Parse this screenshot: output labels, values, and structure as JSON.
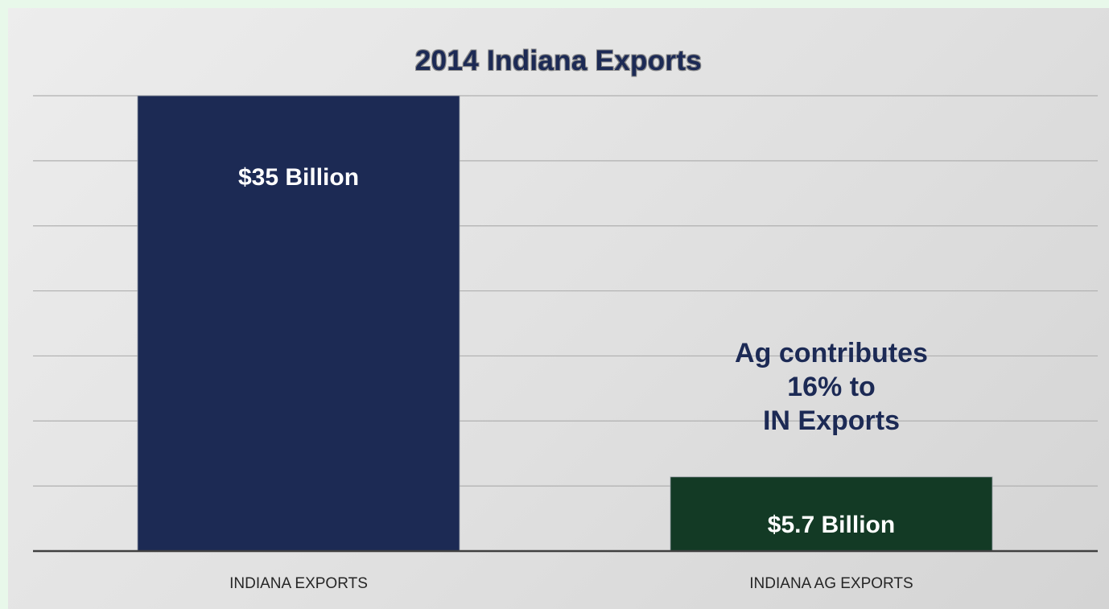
{
  "chart_data": {
    "type": "bar",
    "title": "2014 Indiana Exports",
    "categories": [
      "INDIANA EXPORTS",
      "INDIANA AG EXPORTS"
    ],
    "values": [
      35,
      5.7
    ],
    "data_labels": [
      "$35 Billion",
      "$5.7 Billion"
    ],
    "ylim": [
      0,
      35
    ],
    "grid": true,
    "legend": "none",
    "colors": [
      "#1c2a54",
      "#133a25"
    ],
    "annotation": "Ag contributes\n16% to\nIN Exports"
  }
}
